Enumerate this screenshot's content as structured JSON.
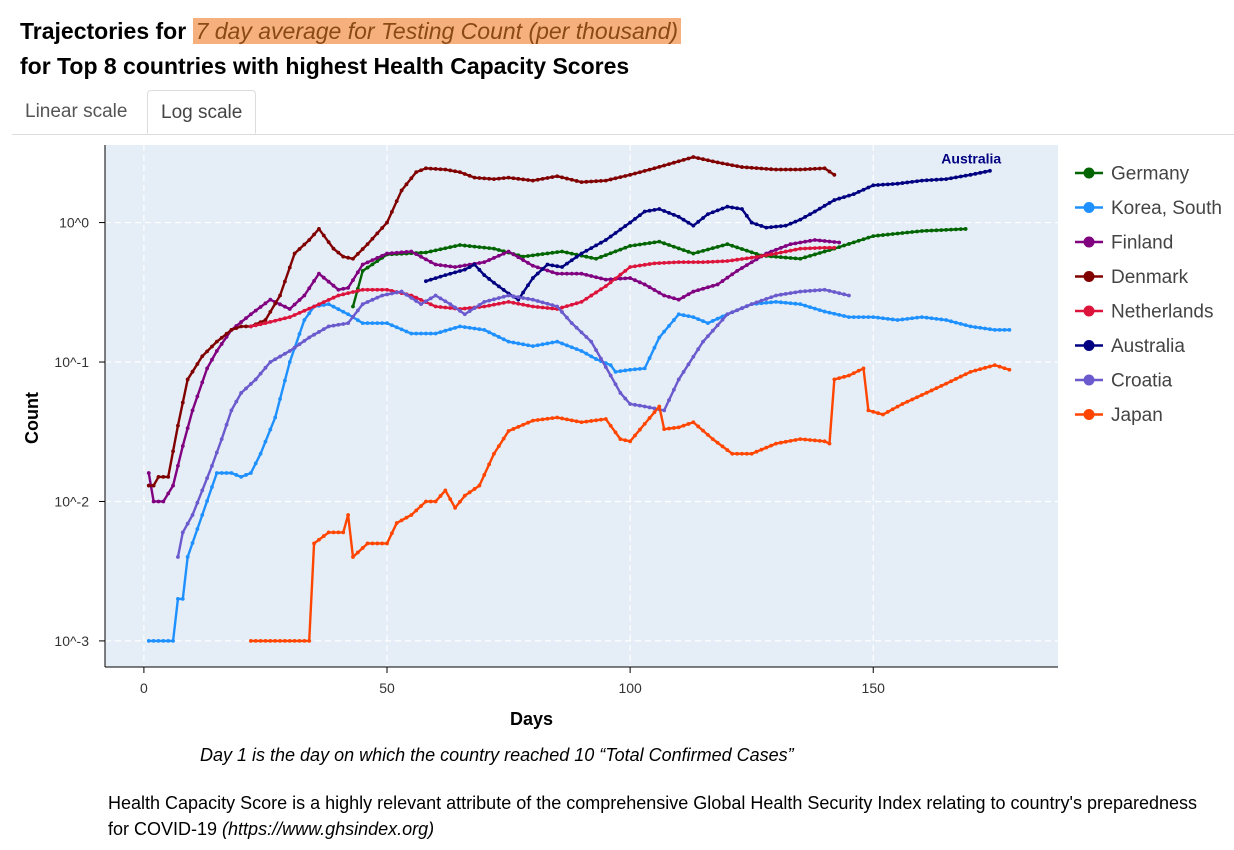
{
  "page": {
    "title_prefix": "Trajectories for",
    "title_highlight": "7 day average for Testing Count (per thousand)",
    "title_line2": "for Top 8 countries with highest Health Capacity Scores",
    "tabs": [
      {
        "label": "Linear scale",
        "active": false
      },
      {
        "label": "Log scale",
        "active": true
      }
    ],
    "note_day1": "Day 1 is the day on which the country reached 10 “Total Confirmed Cases”",
    "note_hcs": "Health Capacity Score is a highly relevant attribute of the comprehensive Global Health Security Index relating to country's preparedness for COVID-19",
    "note_hcs_link": "(https://www.ghsindex.org)"
  },
  "chart_data": {
    "type": "line",
    "xlabel": "Days",
    "ylabel": "Count",
    "x_scale": "linear",
    "y_scale": "log",
    "xlim": [
      -8,
      188
    ],
    "ylim": [
      0.00065,
      3.6
    ],
    "x_ticks": [
      0,
      50,
      100,
      150
    ],
    "y_ticks": [
      {
        "value": 1,
        "label": "10^0"
      },
      {
        "value": 0.1,
        "label": "10^-1"
      },
      {
        "value": 0.01,
        "label": "10^-2"
      },
      {
        "value": 0.001,
        "label": "10^-3"
      }
    ],
    "grid": true,
    "legend_position": "right",
    "annotation": {
      "text": "Australia",
      "x": 164,
      "y": 2.65,
      "color": "#000080"
    },
    "series": [
      {
        "name": "Germany",
        "color": "#006400",
        "points": [
          [
            43,
            0.25
          ],
          [
            45,
            0.45
          ],
          [
            50,
            0.59
          ],
          [
            58,
            0.61
          ],
          [
            65,
            0.69
          ],
          [
            72,
            0.65
          ],
          [
            78,
            0.57
          ],
          [
            86,
            0.62
          ],
          [
            93,
            0.55
          ],
          [
            100,
            0.68
          ],
          [
            106,
            0.73
          ],
          [
            113,
            0.6
          ],
          [
            120,
            0.7
          ],
          [
            127,
            0.58
          ],
          [
            135,
            0.55
          ],
          [
            142,
            0.65
          ],
          [
            150,
            0.8
          ],
          [
            160,
            0.87
          ],
          [
            169,
            0.9
          ]
        ]
      },
      {
        "name": "Korea, South",
        "color": "#1e90ff",
        "points": [
          [
            1,
            0.001
          ],
          [
            6,
            0.001
          ],
          [
            7,
            0.002
          ],
          [
            8,
            0.002
          ],
          [
            9,
            0.004
          ],
          [
            12,
            0.008
          ],
          [
            15,
            0.016
          ],
          [
            18,
            0.016
          ],
          [
            20,
            0.015
          ],
          [
            22,
            0.016
          ],
          [
            24,
            0.022
          ],
          [
            27,
            0.04
          ],
          [
            30,
            0.1
          ],
          [
            33,
            0.2
          ],
          [
            35,
            0.25
          ],
          [
            38,
            0.26
          ],
          [
            42,
            0.22
          ],
          [
            45,
            0.19
          ],
          [
            50,
            0.19
          ],
          [
            55,
            0.16
          ],
          [
            60,
            0.16
          ],
          [
            65,
            0.18
          ],
          [
            70,
            0.17
          ],
          [
            75,
            0.14
          ],
          [
            80,
            0.13
          ],
          [
            85,
            0.14
          ],
          [
            90,
            0.12
          ],
          [
            93,
            0.105
          ],
          [
            96,
            0.095
          ],
          [
            97,
            0.085
          ],
          [
            100,
            0.088
          ],
          [
            103,
            0.09
          ],
          [
            106,
            0.15
          ],
          [
            110,
            0.22
          ],
          [
            113,
            0.21
          ],
          [
            116,
            0.19
          ],
          [
            120,
            0.22
          ],
          [
            125,
            0.26
          ],
          [
            130,
            0.27
          ],
          [
            135,
            0.26
          ],
          [
            140,
            0.23
          ],
          [
            145,
            0.21
          ],
          [
            150,
            0.21
          ],
          [
            155,
            0.2
          ],
          [
            160,
            0.21
          ],
          [
            165,
            0.2
          ],
          [
            170,
            0.18
          ],
          [
            175,
            0.17
          ],
          [
            178,
            0.17
          ]
        ]
      },
      {
        "name": "Finland",
        "color": "#800080",
        "points": [
          [
            1,
            0.016
          ],
          [
            2,
            0.01
          ],
          [
            4,
            0.01
          ],
          [
            6,
            0.013
          ],
          [
            8,
            0.025
          ],
          [
            10,
            0.045
          ],
          [
            13,
            0.09
          ],
          [
            15,
            0.12
          ],
          [
            18,
            0.17
          ],
          [
            22,
            0.22
          ],
          [
            26,
            0.28
          ],
          [
            30,
            0.24
          ],
          [
            33,
            0.3
          ],
          [
            36,
            0.43
          ],
          [
            40,
            0.33
          ],
          [
            42,
            0.34
          ],
          [
            45,
            0.5
          ],
          [
            50,
            0.6
          ],
          [
            55,
            0.62
          ],
          [
            60,
            0.5
          ],
          [
            64,
            0.48
          ],
          [
            70,
            0.52
          ],
          [
            75,
            0.62
          ],
          [
            80,
            0.49
          ],
          [
            85,
            0.43
          ],
          [
            90,
            0.43
          ],
          [
            95,
            0.39
          ],
          [
            100,
            0.4
          ],
          [
            103,
            0.36
          ],
          [
            107,
            0.3
          ],
          [
            110,
            0.28
          ],
          [
            113,
            0.32
          ],
          [
            118,
            0.36
          ],
          [
            122,
            0.45
          ],
          [
            128,
            0.6
          ],
          [
            133,
            0.7
          ],
          [
            138,
            0.75
          ],
          [
            143,
            0.72
          ]
        ]
      },
      {
        "name": "Denmark",
        "color": "#800000",
        "points": [
          [
            1,
            0.013
          ],
          [
            2,
            0.013
          ],
          [
            3,
            0.015
          ],
          [
            5,
            0.015
          ],
          [
            7,
            0.035
          ],
          [
            9,
            0.075
          ],
          [
            12,
            0.11
          ],
          [
            15,
            0.14
          ],
          [
            18,
            0.17
          ],
          [
            20,
            0.18
          ],
          [
            22,
            0.18
          ],
          [
            25,
            0.2
          ],
          [
            28,
            0.3
          ],
          [
            31,
            0.6
          ],
          [
            34,
            0.75
          ],
          [
            36,
            0.9
          ],
          [
            39,
            0.65
          ],
          [
            41,
            0.57
          ],
          [
            43,
            0.55
          ],
          [
            46,
            0.7
          ],
          [
            50,
            1.0
          ],
          [
            53,
            1.7
          ],
          [
            56,
            2.3
          ],
          [
            58,
            2.45
          ],
          [
            62,
            2.4
          ],
          [
            65,
            2.3
          ],
          [
            68,
            2.1
          ],
          [
            72,
            2.05
          ],
          [
            75,
            2.1
          ],
          [
            80,
            2.0
          ],
          [
            85,
            2.15
          ],
          [
            90,
            1.95
          ],
          [
            95,
            2.0
          ],
          [
            100,
            2.2
          ],
          [
            105,
            2.45
          ],
          [
            110,
            2.75
          ],
          [
            113,
            2.95
          ],
          [
            118,
            2.7
          ],
          [
            123,
            2.5
          ],
          [
            130,
            2.4
          ],
          [
            135,
            2.4
          ],
          [
            140,
            2.45
          ],
          [
            142,
            2.2
          ]
        ]
      },
      {
        "name": "Netherlands",
        "color": "#dc143c",
        "points": [
          [
            22,
            0.18
          ],
          [
            25,
            0.19
          ],
          [
            30,
            0.21
          ],
          [
            35,
            0.25
          ],
          [
            40,
            0.3
          ],
          [
            45,
            0.33
          ],
          [
            50,
            0.33
          ],
          [
            55,
            0.3
          ],
          [
            60,
            0.25
          ],
          [
            65,
            0.24
          ],
          [
            70,
            0.25
          ],
          [
            75,
            0.27
          ],
          [
            80,
            0.25
          ],
          [
            85,
            0.24
          ],
          [
            90,
            0.27
          ],
          [
            95,
            0.35
          ],
          [
            100,
            0.48
          ],
          [
            105,
            0.51
          ],
          [
            110,
            0.52
          ],
          [
            115,
            0.52
          ],
          [
            120,
            0.53
          ],
          [
            125,
            0.56
          ],
          [
            130,
            0.6
          ],
          [
            135,
            0.65
          ],
          [
            140,
            0.66
          ],
          [
            142,
            0.66
          ]
        ]
      },
      {
        "name": "Australia",
        "color": "#000080",
        "points": [
          [
            58,
            0.38
          ],
          [
            62,
            0.42
          ],
          [
            66,
            0.46
          ],
          [
            68,
            0.5
          ],
          [
            70,
            0.42
          ],
          [
            72,
            0.37
          ],
          [
            75,
            0.31
          ],
          [
            77,
            0.28
          ],
          [
            80,
            0.4
          ],
          [
            83,
            0.5
          ],
          [
            86,
            0.48
          ],
          [
            90,
            0.6
          ],
          [
            95,
            0.75
          ],
          [
            100,
            1.0
          ],
          [
            103,
            1.2
          ],
          [
            106,
            1.25
          ],
          [
            110,
            1.1
          ],
          [
            113,
            0.95
          ],
          [
            116,
            1.15
          ],
          [
            120,
            1.3
          ],
          [
            123,
            1.25
          ],
          [
            125,
            1.0
          ],
          [
            128,
            0.92
          ],
          [
            132,
            0.95
          ],
          [
            135,
            1.05
          ],
          [
            138,
            1.2
          ],
          [
            142,
            1.45
          ],
          [
            146,
            1.6
          ],
          [
            150,
            1.85
          ],
          [
            155,
            1.9
          ],
          [
            160,
            2.0
          ],
          [
            165,
            2.05
          ],
          [
            170,
            2.2
          ],
          [
            174,
            2.35
          ]
        ]
      },
      {
        "name": "Croatia",
        "color": "#6a5acd",
        "points": [
          [
            7,
            0.004
          ],
          [
            8,
            0.006
          ],
          [
            10,
            0.008
          ],
          [
            12,
            0.012
          ],
          [
            14,
            0.018
          ],
          [
            16,
            0.028
          ],
          [
            18,
            0.045
          ],
          [
            20,
            0.06
          ],
          [
            23,
            0.075
          ],
          [
            26,
            0.1
          ],
          [
            30,
            0.12
          ],
          [
            34,
            0.15
          ],
          [
            38,
            0.18
          ],
          [
            42,
            0.19
          ],
          [
            45,
            0.26
          ],
          [
            49,
            0.3
          ],
          [
            53,
            0.32
          ],
          [
            57,
            0.26
          ],
          [
            60,
            0.3
          ],
          [
            63,
            0.26
          ],
          [
            66,
            0.22
          ],
          [
            70,
            0.27
          ],
          [
            75,
            0.3
          ],
          [
            80,
            0.28
          ],
          [
            85,
            0.25
          ],
          [
            88,
            0.19
          ],
          [
            92,
            0.14
          ],
          [
            96,
            0.08
          ],
          [
            98,
            0.06
          ],
          [
            100,
            0.05
          ],
          [
            103,
            0.048
          ],
          [
            107,
            0.045
          ],
          [
            110,
            0.075
          ],
          [
            115,
            0.14
          ],
          [
            120,
            0.22
          ],
          [
            125,
            0.26
          ],
          [
            130,
            0.3
          ],
          [
            135,
            0.32
          ],
          [
            140,
            0.33
          ],
          [
            145,
            0.3
          ]
        ]
      },
      {
        "name": "Japan",
        "color": "#ff4500",
        "points": [
          [
            22,
            0.001
          ],
          [
            34,
            0.001
          ],
          [
            35,
            0.005
          ],
          [
            38,
            0.006
          ],
          [
            41,
            0.006
          ],
          [
            42,
            0.008
          ],
          [
            43,
            0.004
          ],
          [
            46,
            0.005
          ],
          [
            50,
            0.005
          ],
          [
            52,
            0.007
          ],
          [
            55,
            0.008
          ],
          [
            58,
            0.01
          ],
          [
            60,
            0.01
          ],
          [
            62,
            0.012
          ],
          [
            64,
            0.009
          ],
          [
            66,
            0.011
          ],
          [
            69,
            0.013
          ],
          [
            72,
            0.022
          ],
          [
            75,
            0.032
          ],
          [
            80,
            0.038
          ],
          [
            85,
            0.04
          ],
          [
            90,
            0.037
          ],
          [
            95,
            0.039
          ],
          [
            98,
            0.028
          ],
          [
            100,
            0.027
          ],
          [
            103,
            0.036
          ],
          [
            106,
            0.048
          ],
          [
            107,
            0.033
          ],
          [
            110,
            0.034
          ],
          [
            113,
            0.037
          ],
          [
            117,
            0.028
          ],
          [
            121,
            0.022
          ],
          [
            125,
            0.022
          ],
          [
            130,
            0.026
          ],
          [
            135,
            0.028
          ],
          [
            140,
            0.027
          ],
          [
            141,
            0.026
          ],
          [
            142,
            0.075
          ],
          [
            145,
            0.08
          ],
          [
            148,
            0.09
          ],
          [
            149,
            0.045
          ],
          [
            152,
            0.042
          ],
          [
            156,
            0.05
          ],
          [
            160,
            0.058
          ],
          [
            165,
            0.07
          ],
          [
            170,
            0.085
          ],
          [
            175,
            0.095
          ],
          [
            178,
            0.088
          ]
        ]
      }
    ]
  }
}
